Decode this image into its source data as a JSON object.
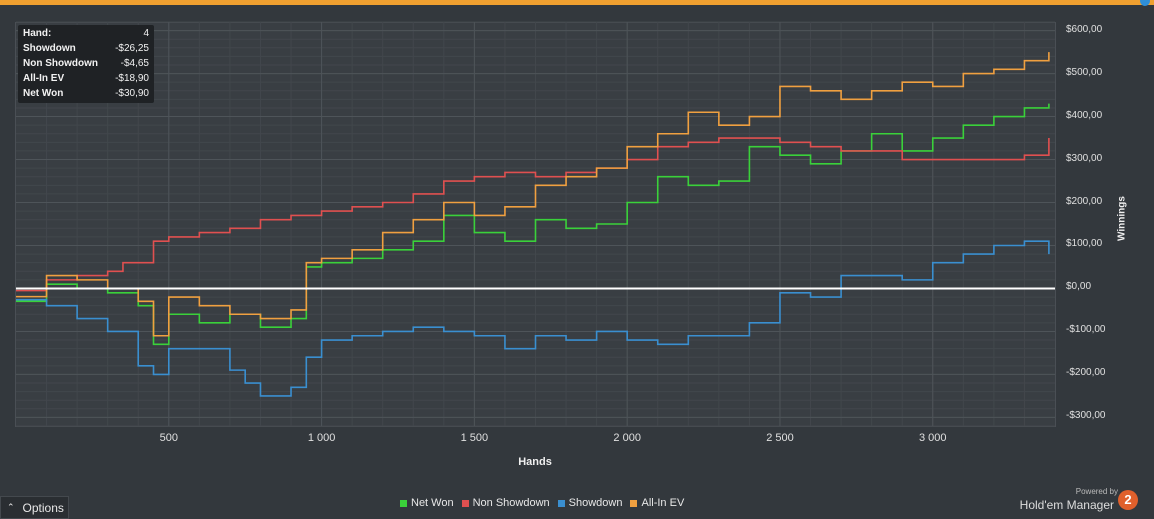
{
  "tooltip": {
    "rows": [
      {
        "label": "Hand:",
        "value": "4"
      },
      {
        "label": "Showdown",
        "value": "-$26,25"
      },
      {
        "label": "Non Showdown",
        "value": "-$4,65"
      },
      {
        "label": "All-In EV",
        "value": "-$18,90"
      },
      {
        "label": "Net Won",
        "value": "-$30,90"
      }
    ]
  },
  "options_label": "Options",
  "branding": {
    "powered": "Powered by",
    "name": "Hold'em Manager",
    "logo": "2"
  },
  "chart_data": {
    "type": "line",
    "xlabel": "Hands",
    "ylabel": "Winnings",
    "xlim": [
      0,
      3400
    ],
    "ylim": [
      -320,
      620
    ],
    "x_ticks": [
      500,
      1000,
      1500,
      2000,
      2500,
      3000
    ],
    "x_tick_labels": [
      "500",
      "1 000",
      "1 500",
      "2 000",
      "2 500",
      "3 000"
    ],
    "y_ticks": [
      600,
      500,
      400,
      300,
      200,
      100,
      0,
      -100,
      -200,
      -300
    ],
    "y_tick_labels": [
      "$600,00",
      "$500,00",
      "$400,00",
      "$300,00",
      "$200,00",
      "$100,00",
      "$0,00",
      "-$100,00",
      "-$200,00",
      "-$300,00"
    ],
    "grid": true,
    "legend_position": "bottom",
    "series": [
      {
        "name": "Net Won",
        "color": "#3ad13a",
        "x": [
          0,
          100,
          200,
          300,
          400,
          450,
          500,
          600,
          700,
          800,
          900,
          950,
          1000,
          1100,
          1200,
          1300,
          1400,
          1500,
          1600,
          1700,
          1800,
          1900,
          2000,
          2100,
          2200,
          2300,
          2400,
          2500,
          2600,
          2700,
          2800,
          2900,
          3000,
          3100,
          3200,
          3300,
          3380
        ],
        "y": [
          -30,
          10,
          0,
          -10,
          -40,
          -130,
          -60,
          -80,
          -60,
          -90,
          -70,
          50,
          60,
          70,
          90,
          110,
          170,
          130,
          110,
          160,
          140,
          150,
          200,
          260,
          240,
          250,
          330,
          310,
          290,
          320,
          360,
          320,
          350,
          380,
          400,
          420,
          430
        ]
      },
      {
        "name": "Non Showdown",
        "color": "#e05050",
        "x": [
          0,
          100,
          200,
          300,
          350,
          400,
          450,
          500,
          600,
          700,
          800,
          900,
          1000,
          1100,
          1200,
          1300,
          1400,
          1500,
          1600,
          1700,
          1800,
          1900,
          2000,
          2100,
          2200,
          2300,
          2400,
          2500,
          2600,
          2700,
          2800,
          2900,
          3000,
          3100,
          3200,
          3300,
          3380
        ],
        "y": [
          -5,
          20,
          30,
          40,
          60,
          60,
          110,
          120,
          130,
          140,
          160,
          170,
          180,
          190,
          200,
          220,
          250,
          260,
          270,
          260,
          270,
          280,
          300,
          330,
          340,
          350,
          350,
          340,
          330,
          320,
          320,
          300,
          300,
          300,
          300,
          310,
          350
        ]
      },
      {
        "name": "Showdown",
        "color": "#3a8fd0",
        "x": [
          0,
          100,
          200,
          300,
          400,
          450,
          500,
          600,
          700,
          750,
          800,
          900,
          950,
          1000,
          1100,
          1200,
          1300,
          1400,
          1500,
          1600,
          1700,
          1800,
          1900,
          2000,
          2100,
          2200,
          2300,
          2400,
          2500,
          2600,
          2700,
          2800,
          2900,
          3000,
          3100,
          3200,
          3300,
          3380
        ],
        "y": [
          -26,
          -40,
          -70,
          -100,
          -180,
          -200,
          -140,
          -140,
          -190,
          -220,
          -250,
          -230,
          -160,
          -120,
          -110,
          -100,
          -90,
          -100,
          -110,
          -140,
          -110,
          -120,
          -100,
          -120,
          -130,
          -110,
          -110,
          -80,
          -10,
          -20,
          30,
          30,
          20,
          60,
          80,
          100,
          110,
          80
        ]
      },
      {
        "name": "All-In EV",
        "color": "#f0a040",
        "x": [
          0,
          100,
          200,
          300,
          400,
          450,
          500,
          600,
          700,
          800,
          900,
          950,
          1000,
          1100,
          1200,
          1300,
          1400,
          1500,
          1600,
          1700,
          1800,
          1900,
          2000,
          2100,
          2200,
          2300,
          2400,
          2500,
          2600,
          2700,
          2800,
          2900,
          3000,
          3100,
          3200,
          3300,
          3380
        ],
        "y": [
          -19,
          30,
          20,
          0,
          -30,
          -110,
          -20,
          -40,
          -60,
          -70,
          -50,
          60,
          70,
          90,
          130,
          160,
          200,
          170,
          190,
          240,
          260,
          280,
          330,
          360,
          410,
          380,
          400,
          470,
          460,
          440,
          460,
          480,
          470,
          500,
          510,
          530,
          550
        ]
      }
    ]
  }
}
